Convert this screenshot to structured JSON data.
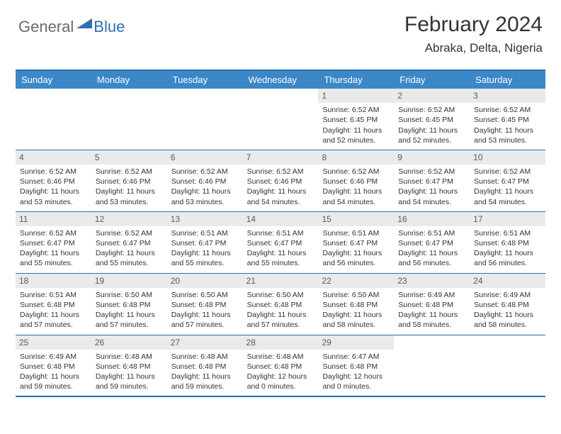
{
  "brand": {
    "part1": "General",
    "part2": "Blue"
  },
  "title": "February 2024",
  "location": "Abraka, Delta, Nigeria",
  "colors": {
    "header_bar": "#3b87c8",
    "border": "#2d6fb0",
    "daynum_bg": "#eaeaea",
    "text": "#333333"
  },
  "day_headers": [
    "Sunday",
    "Monday",
    "Tuesday",
    "Wednesday",
    "Thursday",
    "Friday",
    "Saturday"
  ],
  "weeks": [
    [
      {
        "n": "",
        "sr": "",
        "ss": "",
        "dl": ""
      },
      {
        "n": "",
        "sr": "",
        "ss": "",
        "dl": ""
      },
      {
        "n": "",
        "sr": "",
        "ss": "",
        "dl": ""
      },
      {
        "n": "",
        "sr": "",
        "ss": "",
        "dl": ""
      },
      {
        "n": "1",
        "sr": "Sunrise: 6:52 AM",
        "ss": "Sunset: 6:45 PM",
        "dl": "Daylight: 11 hours and 52 minutes."
      },
      {
        "n": "2",
        "sr": "Sunrise: 6:52 AM",
        "ss": "Sunset: 6:45 PM",
        "dl": "Daylight: 11 hours and 52 minutes."
      },
      {
        "n": "3",
        "sr": "Sunrise: 6:52 AM",
        "ss": "Sunset: 6:45 PM",
        "dl": "Daylight: 11 hours and 53 minutes."
      }
    ],
    [
      {
        "n": "4",
        "sr": "Sunrise: 6:52 AM",
        "ss": "Sunset: 6:46 PM",
        "dl": "Daylight: 11 hours and 53 minutes."
      },
      {
        "n": "5",
        "sr": "Sunrise: 6:52 AM",
        "ss": "Sunset: 6:46 PM",
        "dl": "Daylight: 11 hours and 53 minutes."
      },
      {
        "n": "6",
        "sr": "Sunrise: 6:52 AM",
        "ss": "Sunset: 6:46 PM",
        "dl": "Daylight: 11 hours and 53 minutes."
      },
      {
        "n": "7",
        "sr": "Sunrise: 6:52 AM",
        "ss": "Sunset: 6:46 PM",
        "dl": "Daylight: 11 hours and 54 minutes."
      },
      {
        "n": "8",
        "sr": "Sunrise: 6:52 AM",
        "ss": "Sunset: 6:46 PM",
        "dl": "Daylight: 11 hours and 54 minutes."
      },
      {
        "n": "9",
        "sr": "Sunrise: 6:52 AM",
        "ss": "Sunset: 6:47 PM",
        "dl": "Daylight: 11 hours and 54 minutes."
      },
      {
        "n": "10",
        "sr": "Sunrise: 6:52 AM",
        "ss": "Sunset: 6:47 PM",
        "dl": "Daylight: 11 hours and 54 minutes."
      }
    ],
    [
      {
        "n": "11",
        "sr": "Sunrise: 6:52 AM",
        "ss": "Sunset: 6:47 PM",
        "dl": "Daylight: 11 hours and 55 minutes."
      },
      {
        "n": "12",
        "sr": "Sunrise: 6:52 AM",
        "ss": "Sunset: 6:47 PM",
        "dl": "Daylight: 11 hours and 55 minutes."
      },
      {
        "n": "13",
        "sr": "Sunrise: 6:51 AM",
        "ss": "Sunset: 6:47 PM",
        "dl": "Daylight: 11 hours and 55 minutes."
      },
      {
        "n": "14",
        "sr": "Sunrise: 6:51 AM",
        "ss": "Sunset: 6:47 PM",
        "dl": "Daylight: 11 hours and 55 minutes."
      },
      {
        "n": "15",
        "sr": "Sunrise: 6:51 AM",
        "ss": "Sunset: 6:47 PM",
        "dl": "Daylight: 11 hours and 56 minutes."
      },
      {
        "n": "16",
        "sr": "Sunrise: 6:51 AM",
        "ss": "Sunset: 6:47 PM",
        "dl": "Daylight: 11 hours and 56 minutes."
      },
      {
        "n": "17",
        "sr": "Sunrise: 6:51 AM",
        "ss": "Sunset: 6:48 PM",
        "dl": "Daylight: 11 hours and 56 minutes."
      }
    ],
    [
      {
        "n": "18",
        "sr": "Sunrise: 6:51 AM",
        "ss": "Sunset: 6:48 PM",
        "dl": "Daylight: 11 hours and 57 minutes."
      },
      {
        "n": "19",
        "sr": "Sunrise: 6:50 AM",
        "ss": "Sunset: 6:48 PM",
        "dl": "Daylight: 11 hours and 57 minutes."
      },
      {
        "n": "20",
        "sr": "Sunrise: 6:50 AM",
        "ss": "Sunset: 6:48 PM",
        "dl": "Daylight: 11 hours and 57 minutes."
      },
      {
        "n": "21",
        "sr": "Sunrise: 6:50 AM",
        "ss": "Sunset: 6:48 PM",
        "dl": "Daylight: 11 hours and 57 minutes."
      },
      {
        "n": "22",
        "sr": "Sunrise: 6:50 AM",
        "ss": "Sunset: 6:48 PM",
        "dl": "Daylight: 11 hours and 58 minutes."
      },
      {
        "n": "23",
        "sr": "Sunrise: 6:49 AM",
        "ss": "Sunset: 6:48 PM",
        "dl": "Daylight: 11 hours and 58 minutes."
      },
      {
        "n": "24",
        "sr": "Sunrise: 6:49 AM",
        "ss": "Sunset: 6:48 PM",
        "dl": "Daylight: 11 hours and 58 minutes."
      }
    ],
    [
      {
        "n": "25",
        "sr": "Sunrise: 6:49 AM",
        "ss": "Sunset: 6:48 PM",
        "dl": "Daylight: 11 hours and 59 minutes."
      },
      {
        "n": "26",
        "sr": "Sunrise: 6:48 AM",
        "ss": "Sunset: 6:48 PM",
        "dl": "Daylight: 11 hours and 59 minutes."
      },
      {
        "n": "27",
        "sr": "Sunrise: 6:48 AM",
        "ss": "Sunset: 6:48 PM",
        "dl": "Daylight: 11 hours and 59 minutes."
      },
      {
        "n": "28",
        "sr": "Sunrise: 6:48 AM",
        "ss": "Sunset: 6:48 PM",
        "dl": "Daylight: 12 hours and 0 minutes."
      },
      {
        "n": "29",
        "sr": "Sunrise: 6:47 AM",
        "ss": "Sunset: 6:48 PM",
        "dl": "Daylight: 12 hours and 0 minutes."
      },
      {
        "n": "",
        "sr": "",
        "ss": "",
        "dl": ""
      },
      {
        "n": "",
        "sr": "",
        "ss": "",
        "dl": ""
      }
    ]
  ]
}
